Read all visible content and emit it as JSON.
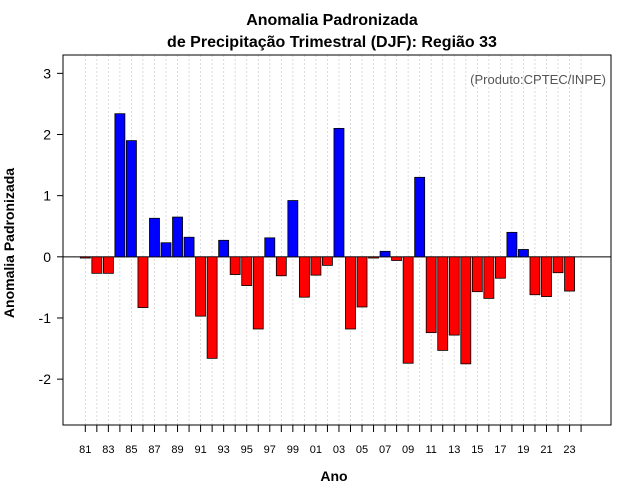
{
  "chart_data": {
    "type": "bar",
    "title_line1": "Anomalia Padronizada",
    "title_line2": "de Precipitação Trimestral (DJF): Região 33",
    "xlabel": "Ano",
    "ylabel": "Anomalia Padronizada",
    "credit": "(Produto:CPTEC/INPE)",
    "ylim": [
      -2.75,
      3.3
    ],
    "yticks": [
      -2,
      -1,
      0,
      1,
      2,
      3
    ],
    "categories": [
      "81",
      "82",
      "83",
      "84",
      "85",
      "86",
      "87",
      "88",
      "89",
      "90",
      "91",
      "92",
      "93",
      "94",
      "95",
      "96",
      "97",
      "98",
      "99",
      "00",
      "01",
      "02",
      "03",
      "04",
      "05",
      "06",
      "07",
      "08",
      "09",
      "10",
      "11",
      "12",
      "13",
      "14",
      "15",
      "16",
      "17",
      "18",
      "19",
      "20",
      "21",
      "22",
      "23",
      "24"
    ],
    "xtick_labels": [
      "81",
      "83",
      "85",
      "87",
      "89",
      "91",
      "93",
      "95",
      "97",
      "99",
      "01",
      "03",
      "05",
      "07",
      "09",
      "11",
      "13",
      "15",
      "17",
      "19",
      "21",
      "23"
    ],
    "values": [
      -0.02,
      -0.27,
      -0.27,
      2.34,
      1.9,
      -0.83,
      0.63,
      0.23,
      0.65,
      0.32,
      -0.97,
      -1.66,
      0.27,
      -0.29,
      -0.47,
      -1.18,
      0.31,
      -0.31,
      0.92,
      -0.66,
      -0.3,
      -0.14,
      2.1,
      -1.18,
      -0.82,
      -0.02,
      0.09,
      -0.06,
      -1.74,
      1.3,
      -1.24,
      -1.53,
      -1.28,
      -1.75,
      -0.57,
      -0.68,
      -0.35,
      0.4,
      0.12,
      -0.62,
      -0.65,
      -0.26,
      -0.56,
      null
    ],
    "colors": {
      "positive": "#0000ff",
      "negative": "#ff0000",
      "grid": "#d3d3d3",
      "axis": "#000000"
    }
  }
}
